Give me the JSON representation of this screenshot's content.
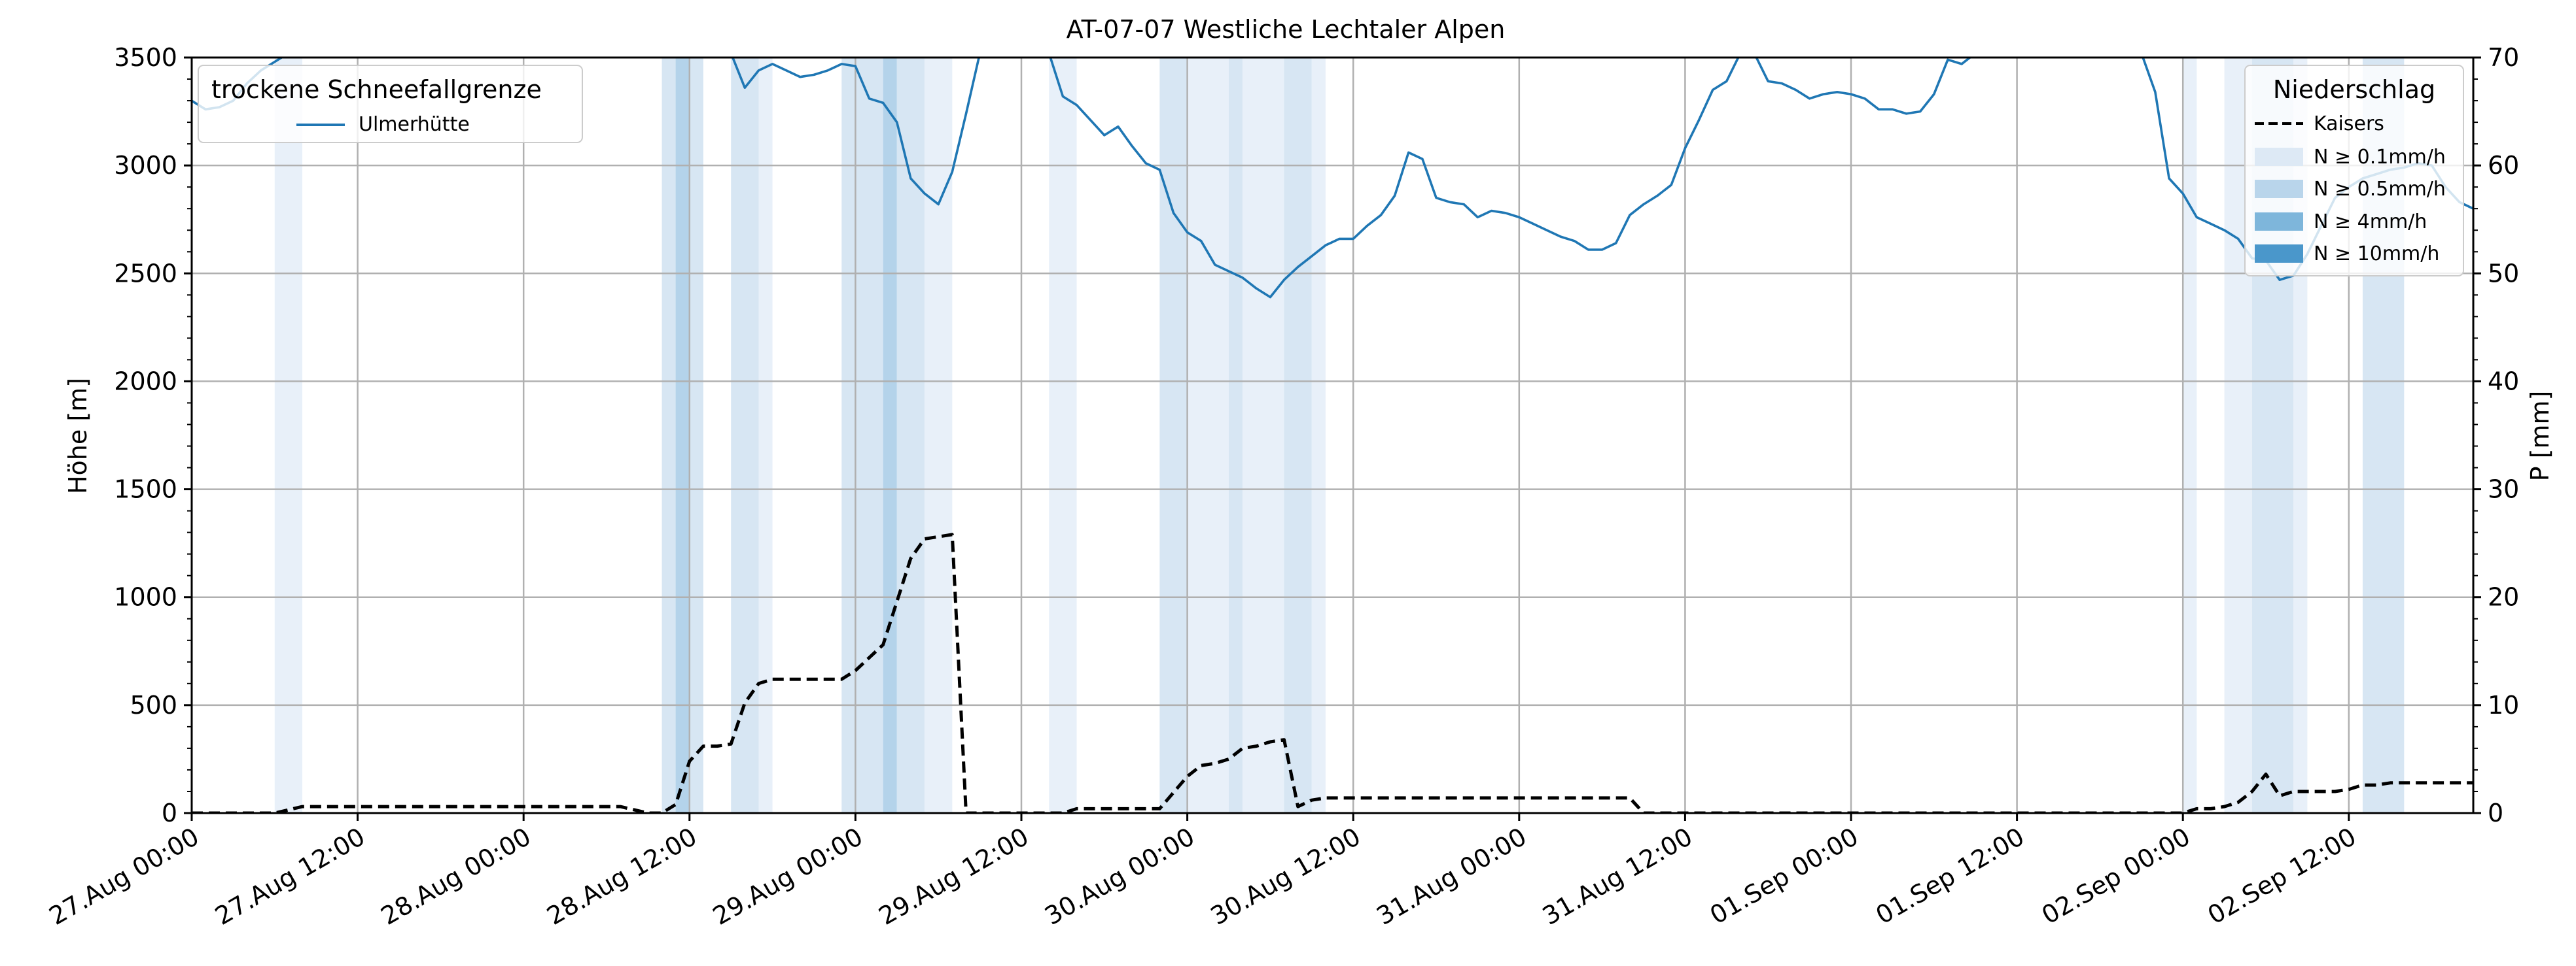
{
  "chart_data": {
    "type": "line",
    "title": "AT-07-07 Westliche Lechtaler Alpen",
    "ylabel_left": "Höhe [m]",
    "ylabel_right": "P [mm]",
    "ylim_left": [
      0,
      3500
    ],
    "ylim_right": [
      0,
      70
    ],
    "yticks_left": [
      0,
      500,
      1000,
      1500,
      2000,
      2500,
      3000,
      3500
    ],
    "yticks_right": [
      0,
      10,
      20,
      30,
      40,
      50,
      60,
      70
    ],
    "x_start": "27.Aug 00:00",
    "x_end": "02.Sep 21:00",
    "xticks": [
      "27.Aug 00:00",
      "27.Aug 12:00",
      "28.Aug 00:00",
      "28.Aug 12:00",
      "29.Aug 00:00",
      "29.Aug 12:00",
      "30.Aug 00:00",
      "30.Aug 12:00",
      "31.Aug 00:00",
      "31.Aug 12:00",
      "01.Sep 00:00",
      "01.Sep 12:00",
      "02.Sep 00:00",
      "02.Sep 12:00"
    ],
    "grid": true,
    "legend_left": {
      "title": "trockene Schneefallgrenze",
      "placement": "top-left",
      "entries": [
        "Ulmerhütte"
      ]
    },
    "legend_right": {
      "title": "Niederschlag",
      "placement": "top-right",
      "entries": [
        "Kaisers",
        "N ≥ 0.1mm/h",
        "N ≥ 0.5mm/h",
        "N ≥ 4mm/h",
        "N ≥ 10mm/h"
      ]
    },
    "band_levels": [
      {
        "label": "N ≥ 0.1mm/h",
        "color": "#e8f0f9"
      },
      {
        "label": "N ≥ 0.5mm/h",
        "color": "#d7e6f3"
      },
      {
        "label": "N ≥ 4mm/h",
        "color": "#b4d3ea"
      },
      {
        "label": "N ≥ 10mm/h",
        "color": "#8ebfde"
      }
    ],
    "precip_bands": [
      {
        "start": "27.Aug 06:00",
        "end": "27.Aug 08:00",
        "level": 0
      },
      {
        "start": "28.Aug 10:00",
        "end": "28.Aug 12:00",
        "level": 1
      },
      {
        "start": "28.Aug 11:00",
        "end": "28.Aug 12:00",
        "level": 2
      },
      {
        "start": "28.Aug 12:00",
        "end": "28.Aug 13:00",
        "level": 1
      },
      {
        "start": "28.Aug 15:00",
        "end": "28.Aug 17:00",
        "level": 1
      },
      {
        "start": "28.Aug 17:00",
        "end": "28.Aug 18:00",
        "level": 0
      },
      {
        "start": "28.Aug 23:00",
        "end": "29.Aug 02:00",
        "level": 1
      },
      {
        "start": "29.Aug 02:00",
        "end": "29.Aug 03:00",
        "level": 2
      },
      {
        "start": "29.Aug 03:00",
        "end": "29.Aug 05:00",
        "level": 1
      },
      {
        "start": "29.Aug 05:00",
        "end": "29.Aug 07:00",
        "level": 0
      },
      {
        "start": "29.Aug 14:00",
        "end": "29.Aug 16:00",
        "level": 0
      },
      {
        "start": "29.Aug 22:00",
        "end": "30.Aug 00:00",
        "level": 1
      },
      {
        "start": "30.Aug 00:00",
        "end": "30.Aug 03:00",
        "level": 0
      },
      {
        "start": "30.Aug 03:00",
        "end": "30.Aug 04:00",
        "level": 1
      },
      {
        "start": "30.Aug 04:00",
        "end": "30.Aug 07:00",
        "level": 0
      },
      {
        "start": "30.Aug 07:00",
        "end": "30.Aug 09:00",
        "level": 1
      },
      {
        "start": "30.Aug 09:00",
        "end": "30.Aug 10:00",
        "level": 0
      },
      {
        "start": "02.Sep 00:00",
        "end": "02.Sep 01:00",
        "level": 0
      },
      {
        "start": "02.Sep 03:00",
        "end": "02.Sep 05:00",
        "level": 0
      },
      {
        "start": "02.Sep 05:00",
        "end": "02.Sep 08:00",
        "level": 1
      },
      {
        "start": "02.Sep 08:00",
        "end": "02.Sep 09:00",
        "level": 0
      },
      {
        "start": "02.Sep 13:00",
        "end": "02.Sep 16:00",
        "level": 1
      }
    ],
    "series": [
      {
        "name": "Ulmerhütte",
        "axis": "left",
        "color": "#1f77b4",
        "style": "solid",
        "points": [
          [
            "27.Aug 00:00",
            3300
          ],
          [
            "27.Aug 01:00",
            3260
          ],
          [
            "27.Aug 02:00",
            3270
          ],
          [
            "27.Aug 03:00",
            3300
          ],
          [
            "27.Aug 04:00",
            3380
          ],
          [
            "27.Aug 05:00",
            3440
          ],
          [
            "27.Aug 06:00",
            3480
          ],
          [
            "27.Aug 07:00",
            3520
          ],
          [
            "28.Aug 15:00",
            3520
          ],
          [
            "28.Aug 16:00",
            3360
          ],
          [
            "28.Aug 17:00",
            3440
          ],
          [
            "28.Aug 18:00",
            3470
          ],
          [
            "28.Aug 19:00",
            3440
          ],
          [
            "28.Aug 20:00",
            3410
          ],
          [
            "28.Aug 21:00",
            3420
          ],
          [
            "28.Aug 22:00",
            3440
          ],
          [
            "28.Aug 23:00",
            3470
          ],
          [
            "29.Aug 00:00",
            3460
          ],
          [
            "29.Aug 01:00",
            3310
          ],
          [
            "29.Aug 02:00",
            3290
          ],
          [
            "29.Aug 03:00",
            3200
          ],
          [
            "29.Aug 04:00",
            2940
          ],
          [
            "29.Aug 05:00",
            2870
          ],
          [
            "29.Aug 06:00",
            2820
          ],
          [
            "29.Aug 07:00",
            2970
          ],
          [
            "29.Aug 08:00",
            3240
          ],
          [
            "29.Aug 09:00",
            3520
          ],
          [
            "29.Aug 14:00",
            3520
          ],
          [
            "29.Aug 15:00",
            3320
          ],
          [
            "29.Aug 16:00",
            3280
          ],
          [
            "29.Aug 17:00",
            3210
          ],
          [
            "29.Aug 18:00",
            3140
          ],
          [
            "29.Aug 19:00",
            3180
          ],
          [
            "29.Aug 20:00",
            3090
          ],
          [
            "29.Aug 21:00",
            3010
          ],
          [
            "29.Aug 22:00",
            2980
          ],
          [
            "29.Aug 23:00",
            2780
          ],
          [
            "30.Aug 00:00",
            2690
          ],
          [
            "30.Aug 01:00",
            2650
          ],
          [
            "30.Aug 02:00",
            2540
          ],
          [
            "30.Aug 03:00",
            2510
          ],
          [
            "30.Aug 04:00",
            2480
          ],
          [
            "30.Aug 05:00",
            2430
          ],
          [
            "30.Aug 06:00",
            2390
          ],
          [
            "30.Aug 07:00",
            2470
          ],
          [
            "30.Aug 08:00",
            2530
          ],
          [
            "30.Aug 09:00",
            2580
          ],
          [
            "30.Aug 10:00",
            2630
          ],
          [
            "30.Aug 11:00",
            2660
          ],
          [
            "30.Aug 12:00",
            2660
          ],
          [
            "30.Aug 13:00",
            2720
          ],
          [
            "30.Aug 14:00",
            2770
          ],
          [
            "30.Aug 15:00",
            2860
          ],
          [
            "30.Aug 16:00",
            3060
          ],
          [
            "30.Aug 17:00",
            3030
          ],
          [
            "30.Aug 18:00",
            2850
          ],
          [
            "30.Aug 19:00",
            2830
          ],
          [
            "30.Aug 20:00",
            2820
          ],
          [
            "30.Aug 21:00",
            2760
          ],
          [
            "30.Aug 22:00",
            2790
          ],
          [
            "30.Aug 23:00",
            2780
          ],
          [
            "31.Aug 00:00",
            2760
          ],
          [
            "31.Aug 01:00",
            2730
          ],
          [
            "31.Aug 02:00",
            2700
          ],
          [
            "31.Aug 03:00",
            2670
          ],
          [
            "31.Aug 04:00",
            2650
          ],
          [
            "31.Aug 05:00",
            2610
          ],
          [
            "31.Aug 06:00",
            2610
          ],
          [
            "31.Aug 07:00",
            2640
          ],
          [
            "31.Aug 08:00",
            2770
          ],
          [
            "31.Aug 09:00",
            2820
          ],
          [
            "31.Aug 10:00",
            2860
          ],
          [
            "31.Aug 11:00",
            2910
          ],
          [
            "31.Aug 12:00",
            3080
          ],
          [
            "31.Aug 13:00",
            3210
          ],
          [
            "31.Aug 14:00",
            3350
          ],
          [
            "31.Aug 15:00",
            3390
          ],
          [
            "31.Aug 16:00",
            3520
          ],
          [
            "31.Aug 17:00",
            3520
          ],
          [
            "31.Aug 18:00",
            3390
          ],
          [
            "31.Aug 19:00",
            3380
          ],
          [
            "31.Aug 20:00",
            3350
          ],
          [
            "31.Aug 21:00",
            3310
          ],
          [
            "31.Aug 22:00",
            3330
          ],
          [
            "31.Aug 23:00",
            3340
          ],
          [
            "01.Sep 00:00",
            3330
          ],
          [
            "01.Sep 01:00",
            3310
          ],
          [
            "01.Sep 02:00",
            3260
          ],
          [
            "01.Sep 03:00",
            3260
          ],
          [
            "01.Sep 04:00",
            3240
          ],
          [
            "01.Sep 05:00",
            3250
          ],
          [
            "01.Sep 06:00",
            3330
          ],
          [
            "01.Sep 07:00",
            3490
          ],
          [
            "01.Sep 08:00",
            3470
          ],
          [
            "01.Sep 09:00",
            3520
          ],
          [
            "01.Sep 21:00",
            3520
          ],
          [
            "01.Sep 22:00",
            3340
          ],
          [
            "01.Sep 23:00",
            2940
          ],
          [
            "02.Sep 00:00",
            2870
          ],
          [
            "02.Sep 01:00",
            2760
          ],
          [
            "02.Sep 02:00",
            2730
          ],
          [
            "02.Sep 03:00",
            2700
          ],
          [
            "02.Sep 04:00",
            2660
          ],
          [
            "02.Sep 05:00",
            2570
          ],
          [
            "02.Sep 06:00",
            2560
          ],
          [
            "02.Sep 07:00",
            2470
          ],
          [
            "02.Sep 08:00",
            2490
          ],
          [
            "02.Sep 09:00",
            2590
          ],
          [
            "02.Sep 10:00",
            2720
          ],
          [
            "02.Sep 11:00",
            2850
          ],
          [
            "02.Sep 12:00",
            2900
          ],
          [
            "02.Sep 13:00",
            2940
          ],
          [
            "02.Sep 14:00",
            2960
          ],
          [
            "02.Sep 15:00",
            2980
          ],
          [
            "02.Sep 16:00",
            2990
          ],
          [
            "02.Sep 17:00",
            3010
          ],
          [
            "02.Sep 18:00",
            3000
          ],
          [
            "02.Sep 19:00",
            2900
          ],
          [
            "02.Sep 20:00",
            2830
          ],
          [
            "02.Sep 21:00",
            2800
          ]
        ]
      },
      {
        "name": "Kaisers",
        "axis": "right",
        "color": "#000000",
        "style": "dashed",
        "points": [
          [
            "27.Aug 00:00",
            0
          ],
          [
            "27.Aug 06:00",
            0
          ],
          [
            "27.Aug 08:00",
            0.6
          ],
          [
            "28.Aug 07:00",
            0.6
          ],
          [
            "28.Aug 09:00",
            0
          ],
          [
            "28.Aug 10:00",
            0
          ],
          [
            "28.Aug 11:00",
            0.8
          ],
          [
            "28.Aug 12:00",
            4.8
          ],
          [
            "28.Aug 13:00",
            6.2
          ],
          [
            "28.Aug 14:00",
            6.2
          ],
          [
            "28.Aug 15:00",
            6.4
          ],
          [
            "28.Aug 16:00",
            10.2
          ],
          [
            "28.Aug 17:00",
            12.0
          ],
          [
            "28.Aug 18:00",
            12.4
          ],
          [
            "28.Aug 21:00",
            12.4
          ],
          [
            "28.Aug 23:00",
            12.4
          ],
          [
            "29.Aug 00:00",
            13.2
          ],
          [
            "29.Aug 01:00",
            14.4
          ],
          [
            "29.Aug 02:00",
            15.6
          ],
          [
            "29.Aug 03:00",
            19.6
          ],
          [
            "29.Aug 04:00",
            23.6
          ],
          [
            "29.Aug 05:00",
            25.4
          ],
          [
            "29.Aug 06:00",
            25.6
          ],
          [
            "29.Aug 07:00",
            25.8
          ],
          [
            "29.Aug 08:00",
            0
          ],
          [
            "29.Aug 15:00",
            0
          ],
          [
            "29.Aug 16:00",
            0.4
          ],
          [
            "29.Aug 22:00",
            0.4
          ],
          [
            "30.Aug 00:00",
            3.4
          ],
          [
            "30.Aug 01:00",
            4.4
          ],
          [
            "30.Aug 02:00",
            4.6
          ],
          [
            "30.Aug 03:00",
            5.0
          ],
          [
            "30.Aug 04:00",
            6.0
          ],
          [
            "30.Aug 05:00",
            6.2
          ],
          [
            "30.Aug 06:00",
            6.6
          ],
          [
            "30.Aug 07:00",
            6.8
          ],
          [
            "30.Aug 08:00",
            0.6
          ],
          [
            "30.Aug 09:00",
            1.2
          ],
          [
            "30.Aug 10:00",
            1.4
          ],
          [
            "31.Aug 07:00",
            1.4
          ],
          [
            "31.Aug 08:00",
            1.4
          ],
          [
            "31.Aug 09:00",
            0
          ],
          [
            "01.Sep 23:00",
            0
          ],
          [
            "02.Sep 00:00",
            0
          ],
          [
            "02.Sep 01:00",
            0.4
          ],
          [
            "02.Sep 02:00",
            0.4
          ],
          [
            "02.Sep 03:00",
            0.6
          ],
          [
            "02.Sep 04:00",
            1.0
          ],
          [
            "02.Sep 05:00",
            2.0
          ],
          [
            "02.Sep 06:00",
            3.6
          ],
          [
            "02.Sep 07:00",
            1.6
          ],
          [
            "02.Sep 08:00",
            2.0
          ],
          [
            "02.Sep 09:00",
            2.0
          ],
          [
            "02.Sep 10:00",
            2.0
          ],
          [
            "02.Sep 11:00",
            2.0
          ],
          [
            "02.Sep 12:00",
            2.2
          ],
          [
            "02.Sep 13:00",
            2.6
          ],
          [
            "02.Sep 14:00",
            2.6
          ],
          [
            "02.Sep 15:00",
            2.8
          ],
          [
            "02.Sep 21:00",
            2.8
          ]
        ]
      }
    ]
  }
}
